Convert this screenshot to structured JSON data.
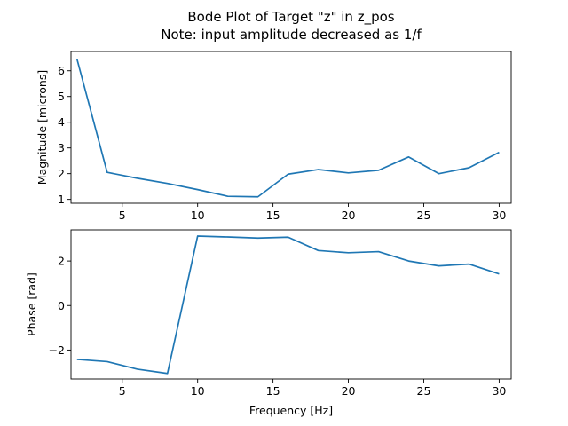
{
  "figure": {
    "title_line1": "Bode Plot of Target \"z\" in z_pos",
    "title_line2": "Note: input amplitude decreased as 1/f"
  },
  "chart_data": [
    {
      "type": "line",
      "xlabel": "",
      "ylabel": "Magnitude [microns]",
      "xlim": [
        1.6,
        30.8
      ],
      "ylim": [
        0.85,
        6.75
      ],
      "xticks": [
        5,
        10,
        15,
        20,
        25,
        30
      ],
      "yticks": [
        1,
        2,
        3,
        4,
        5,
        6
      ],
      "grid": false,
      "color": "#1f77b4",
      "series": [
        {
          "x": [
            2,
            4,
            6,
            8,
            10,
            12,
            14,
            16,
            18,
            20,
            22,
            24,
            26,
            28,
            30
          ],
          "y": [
            6.45,
            2.05,
            1.82,
            1.62,
            1.38,
            1.12,
            1.1,
            1.98,
            2.16,
            2.03,
            2.13,
            2.65,
            2.0,
            2.23,
            2.83
          ]
        }
      ]
    },
    {
      "type": "line",
      "xlabel": "Frequency [Hz]",
      "ylabel": "Phase [rad]",
      "xlim": [
        1.6,
        30.8
      ],
      "ylim": [
        -3.3,
        3.4
      ],
      "xticks": [
        5,
        10,
        15,
        20,
        25,
        30
      ],
      "yticks": [
        -2,
        0,
        2
      ],
      "grid": false,
      "color": "#1f77b4",
      "series": [
        {
          "x": [
            2,
            4,
            6,
            8,
            10,
            12,
            14,
            16,
            18,
            20,
            22,
            24,
            26,
            28,
            30
          ],
          "y": [
            -2.42,
            -2.52,
            -2.86,
            -3.05,
            3.12,
            3.08,
            3.03,
            3.07,
            2.47,
            2.37,
            2.42,
            2.0,
            1.78,
            1.86,
            1.42
          ]
        }
      ]
    }
  ]
}
